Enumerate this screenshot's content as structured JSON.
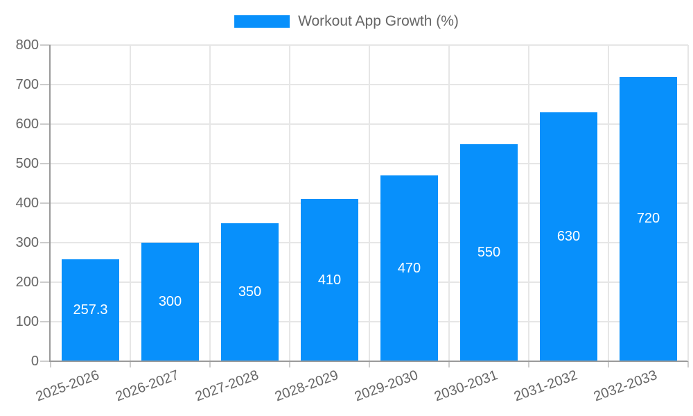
{
  "legend": {
    "label": "Workout App Growth (%)"
  },
  "colors": {
    "bar": "#0890fb",
    "axis": "#9a9a9a",
    "grid": "#e6e6e6",
    "tick_mark": "#cccccc",
    "tick_label": "#666666",
    "bar_label": "#ffffff",
    "background": "#ffffff"
  },
  "chart_data": {
    "type": "bar",
    "title": "Workout App Growth (%)",
    "categories": [
      "2025-2026",
      "2026-2027",
      "2027-2028",
      "2028-2029",
      "2029-2030",
      "2030-2031",
      "2031-2032",
      "2032-2033"
    ],
    "values": [
      257.3,
      300,
      350,
      410,
      470,
      550,
      630,
      720
    ],
    "series_name": "Workout App Growth (%)",
    "xlabel": "",
    "ylabel": "",
    "ylim": [
      0,
      800
    ],
    "yticks": [
      0,
      100,
      200,
      300,
      400,
      500,
      600,
      700,
      800
    ],
    "grid": true,
    "grid_vertical": true,
    "legend_position": "top",
    "bar_value_labels_inside": true,
    "x_label_rotation_deg": -20
  }
}
